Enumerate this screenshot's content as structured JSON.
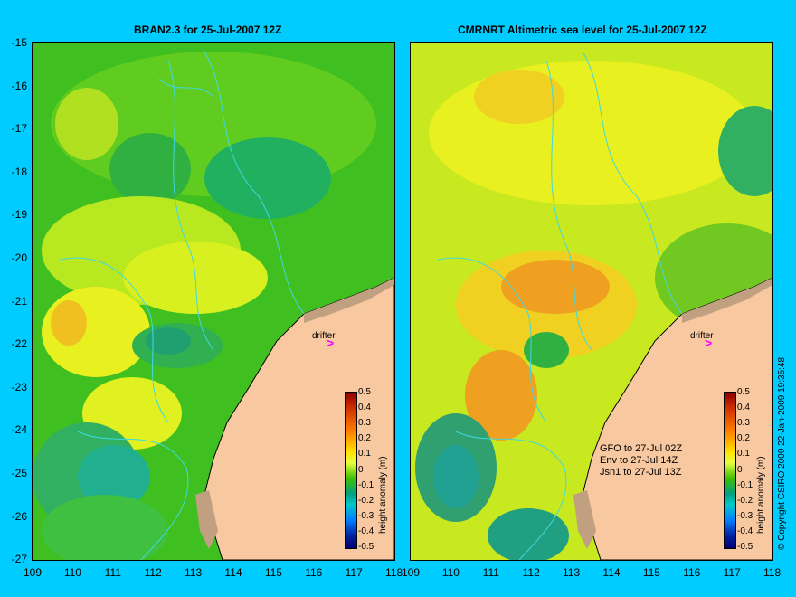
{
  "left": {
    "title": "BRAN2.3 for 25-Jul-2007 12Z",
    "drifter_label": "drifter",
    "colorbar_label": "height anomaly (m)"
  },
  "right": {
    "title": "CMRNRT Altimetric sea level  for 25-Jul-2007 12Z",
    "drifter_label": "drifter",
    "colorbar_label": "height anomaly (m)",
    "satellites": [
      "GFO to 27-Jul 02Z",
      "Env to 27-Jul 14Z",
      "Jsn1 to 27-Jul 13Z"
    ]
  },
  "y_ticks": [
    "-15",
    "-16",
    "-17",
    "-18",
    "-19",
    "-20",
    "-21",
    "-22",
    "-23",
    "-24",
    "-25",
    "-26",
    "-27"
  ],
  "x_ticks": [
    "109",
    "110",
    "111",
    "112",
    "113",
    "114",
    "115",
    "116",
    "117",
    "118"
  ],
  "colorbar_ticks": [
    "0.5",
    "0.4",
    "0.3",
    "0.2",
    "0.1",
    "0",
    "-0.1",
    "-0.2",
    "-0.3",
    "-0.4",
    "-0.5"
  ],
  "drifter_marker": ">",
  "copyright": "© Copyright CSIRO 2009   22-Jan-2009 19:35:48",
  "colors": {
    "background": "#00ccff",
    "land": "#f8c8a0",
    "coast": "#c0a080",
    "contour": "#40d8e0",
    "drifter": "#ff00ff"
  }
}
